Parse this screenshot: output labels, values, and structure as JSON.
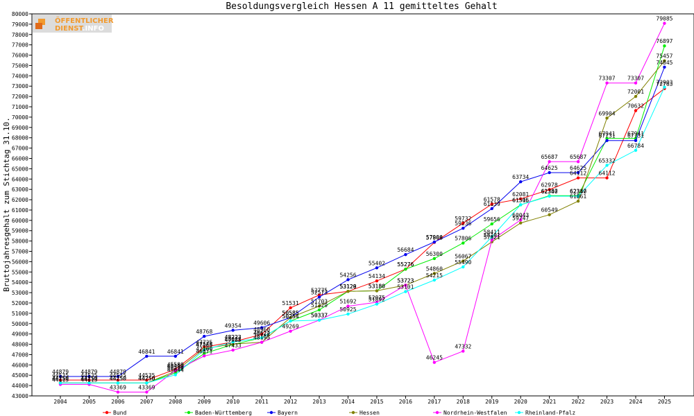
{
  "logo": {
    "line1": "ÖFFENTLICHER",
    "line2": "DIENST",
    "line3": ".INFO"
  },
  "chart_data": {
    "type": "line",
    "title": "Besoldungsvergleich Hessen A 11 gemitteltes Gehalt",
    "ylabel": "Bruttojahresgehalt zum Stichtag 31.10.",
    "xlabel": "",
    "ylim": [
      43000,
      80000
    ],
    "ytick_step": 1000,
    "grid": false,
    "legend": "bottom",
    "x": [
      2004,
      2005,
      2006,
      2007,
      2008,
      2009,
      2010,
      2011,
      2012,
      2013,
      2014,
      2015,
      2016,
      2017,
      2018,
      2019,
      2020,
      2021,
      2022,
      2023,
      2024,
      2025
    ],
    "series": [
      {
        "name": "Bund",
        "color": "#ff0000",
        "values": [
          44535,
          44535,
          44535,
          44535,
          45580,
          47725,
          48223,
          48960,
          51531,
          52775,
          53129,
          54134,
          55276,
          57868,
          59732,
          61578,
          62081,
          62978,
          64112,
          64112,
          70632,
          72763
        ]
      },
      {
        "name": "Baden-Württemberg",
        "color": "#00ee00",
        "values": [
          44250,
          44250,
          44250,
          44250,
          45220,
          47100,
          47985,
          48624,
          50254,
          51329,
          53126,
          53180,
          55276,
          56300,
          57806,
          59656,
          61506,
          62387,
          62387,
          67941,
          67941,
          76897
        ]
      },
      {
        "name": "Bayern",
        "color": "#0000ee",
        "values": [
          44879,
          44879,
          44879,
          46841,
          46841,
          48768,
          49354,
          49606,
          50585,
          52573,
          54256,
          55402,
          56684,
          57906,
          59236,
          61139,
          63734,
          64625,
          64625,
          67731,
          67731,
          74845
        ]
      },
      {
        "name": "Hessen",
        "color": "#808000",
        "values": [
          44250,
          44250,
          44250,
          44250,
          45390,
          47578,
          48022,
          48195,
          50585,
          51703,
          53129,
          53180,
          53723,
          54860,
          56067,
          57921,
          59747,
          60549,
          61861,
          69904,
          72001,
          75457
        ]
      },
      {
        "name": "Nordrhein-Westfalen",
        "color": "#ff00ff",
        "values": [
          44113,
          44113,
          43369,
          43369,
          45450,
          46871,
          47433,
          48195,
          49269,
          50337,
          51692,
          52075,
          53723,
          46245,
          47332,
          58101,
          60043,
          65687,
          65687,
          73307,
          73307,
          79085
        ]
      },
      {
        "name": "Rheinland-Pfalz",
        "color": "#00ffff",
        "values": [
          44250,
          44250,
          44250,
          44250,
          45044,
          47465,
          48223,
          48622,
          50254,
          50337,
          50925,
          51892,
          53101,
          54215,
          55490,
          58411,
          61515,
          62340,
          62340,
          65332,
          66784,
          72903
        ]
      }
    ]
  }
}
